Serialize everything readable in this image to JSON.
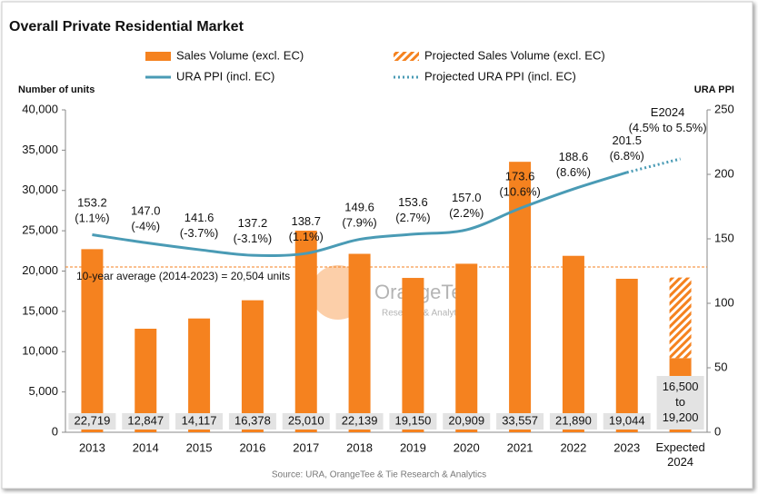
{
  "chart_data": {
    "type": "bar_line",
    "title": "Overall Private Residential Market",
    "y_axis_title": "Number of units",
    "y2_axis_title": "URA PPI",
    "source": "Source: URA, OrangeTee & Tie Research & Analytics",
    "watermark": {
      "brand": "OrangeTee",
      "tagline": "Research & Analytics"
    },
    "categories": [
      "2013",
      "2014",
      "2015",
      "2016",
      "2017",
      "2018",
      "2019",
      "2020",
      "2021",
      "2022",
      "2023",
      "Expected\n2024"
    ],
    "series": [
      {
        "name": "Sales Volume (excl. EC)",
        "kind": "bar",
        "color": "#f5821f",
        "values": [
          22719,
          12847,
          14117,
          16378,
          25010,
          22139,
          19150,
          20909,
          33557,
          21890,
          19044,
          9200
        ],
        "value_labels": [
          "22,719",
          "12,847",
          "14,117",
          "16,378",
          "25,010",
          "22,139",
          "19,150",
          "20,909",
          "33,557",
          "21,890",
          "19,044",
          null
        ]
      },
      {
        "name": "Projected Sales Volume (excl. EC)",
        "kind": "bar",
        "style": "hatched",
        "color": "#f5821f",
        "values": [
          null,
          null,
          null,
          null,
          null,
          null,
          null,
          null,
          null,
          null,
          null,
          10000
        ]
      },
      {
        "name": "URA PPI (incl. EC)",
        "kind": "line",
        "axis": "y2",
        "color": "#4a9bb5",
        "values": [
          153.2,
          147.0,
          141.6,
          137.2,
          138.7,
          149.6,
          153.6,
          157.0,
          173.6,
          188.6,
          201.5,
          null
        ],
        "value_labels": [
          "153.2\n(1.1%)",
          "147.0\n(-4%)",
          "141.6\n(-3.7%)",
          "137.2\n(-3.1%)",
          "138.7\n(1.1%)",
          "149.6\n(7.9%)",
          "153.6\n(2.7%)",
          "157.0\n(2.2%)",
          "173.6\n(10.6%)",
          "188.6\n(8.6%)",
          "201.5\n(6.8%)",
          null
        ]
      },
      {
        "name": "Projected URA PPI (incl. EC)",
        "kind": "line",
        "style": "dotted",
        "axis": "y2",
        "color": "#4a9bb5",
        "values": [
          null,
          null,
          null,
          null,
          null,
          null,
          null,
          null,
          null,
          null,
          201.5,
          212
        ]
      }
    ],
    "annotations": [
      {
        "category": 11,
        "text": "E2024\n(4.5% to 5.5%)"
      },
      {
        "category": 11,
        "text": "16,500\nto\n19,200"
      }
    ],
    "ref_line": {
      "value": 20504,
      "label": "10-year average (2014-2023) = 20,504 units",
      "color": "#f5821f"
    },
    "ylim": [
      0,
      40000
    ],
    "yticks": [
      0,
      {
        "value": 5000,
        "label": "5,000"
      },
      {
        "value": 10000,
        "label": "10,000"
      },
      {
        "value": 15000,
        "label": "15,000"
      },
      {
        "value": 20000,
        "label": "20,000"
      },
      {
        "value": 25000,
        "label": "25,000"
      },
      {
        "value": 30000,
        "label": "30,000"
      },
      {
        "value": 35000,
        "label": "35,000"
      },
      {
        "value": 40000,
        "label": "40,000"
      }
    ],
    "y2lim": [
      0,
      250
    ],
    "y2ticks": [
      0,
      50,
      100,
      150,
      200,
      250
    ],
    "grid": false
  }
}
